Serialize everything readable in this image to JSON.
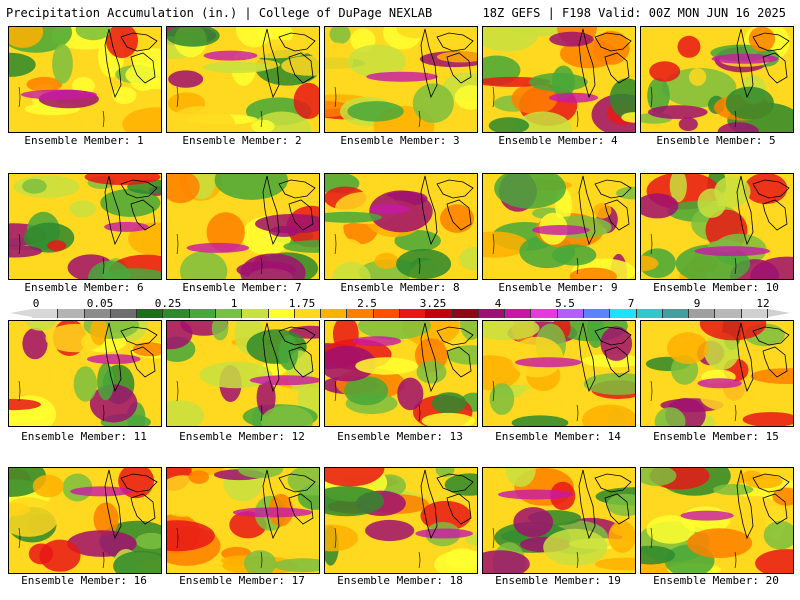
{
  "header": {
    "left_title": "Precipitation Accumulation (in.) | College of DuPage NEXLAB",
    "right_title": "18Z GEFS | F198 Valid: 00Z MON JUN 16 2025"
  },
  "panels": [
    {
      "label": "Ensemble Member: 1"
    },
    {
      "label": "Ensemble Member: 2"
    },
    {
      "label": "Ensemble Member: 3"
    },
    {
      "label": "Ensemble Member: 4"
    },
    {
      "label": "Ensemble Member: 5"
    },
    {
      "label": "Ensemble Member: 6"
    },
    {
      "label": "Ensemble Member: 7"
    },
    {
      "label": "Ensemble Member: 8"
    },
    {
      "label": "Ensemble Member: 9"
    },
    {
      "label": "Ensemble Member: 10"
    },
    {
      "label": "Ensemble Member: 11"
    },
    {
      "label": "Ensemble Member: 12"
    },
    {
      "label": "Ensemble Member: 13"
    },
    {
      "label": "Ensemble Member: 14"
    },
    {
      "label": "Ensemble Member: 15"
    },
    {
      "label": "Ensemble Member: 16"
    },
    {
      "label": "Ensemble Member: 17"
    },
    {
      "label": "Ensemble Member: 18"
    },
    {
      "label": "Ensemble Member: 19"
    },
    {
      "label": "Ensemble Member: 20"
    }
  ],
  "colorbar": {
    "tick_labels": [
      "0",
      "0.05",
      "0.25",
      "1",
      "1.75",
      "2.5",
      "3.25",
      "4",
      "5.5",
      "7",
      "9",
      "12"
    ],
    "colors": [
      "#d8d8d8",
      "#b4b4b4",
      "#8c8c8c",
      "#6e6e6e",
      "#1e6e1e",
      "#2e8a2e",
      "#48a83a",
      "#7cc040",
      "#c8e040",
      "#ffff30",
      "#ffd820",
      "#ffb000",
      "#ff8000",
      "#ff5000",
      "#e81818",
      "#c00010",
      "#900818",
      "#a01070",
      "#c818a8",
      "#e838e0",
      "#b060ff",
      "#6080ff",
      "#20e0ff",
      "#30c8c8",
      "#40a0a0",
      "#a0a0a0",
      "#b8b8b8",
      "#d0d0d0"
    ]
  }
}
